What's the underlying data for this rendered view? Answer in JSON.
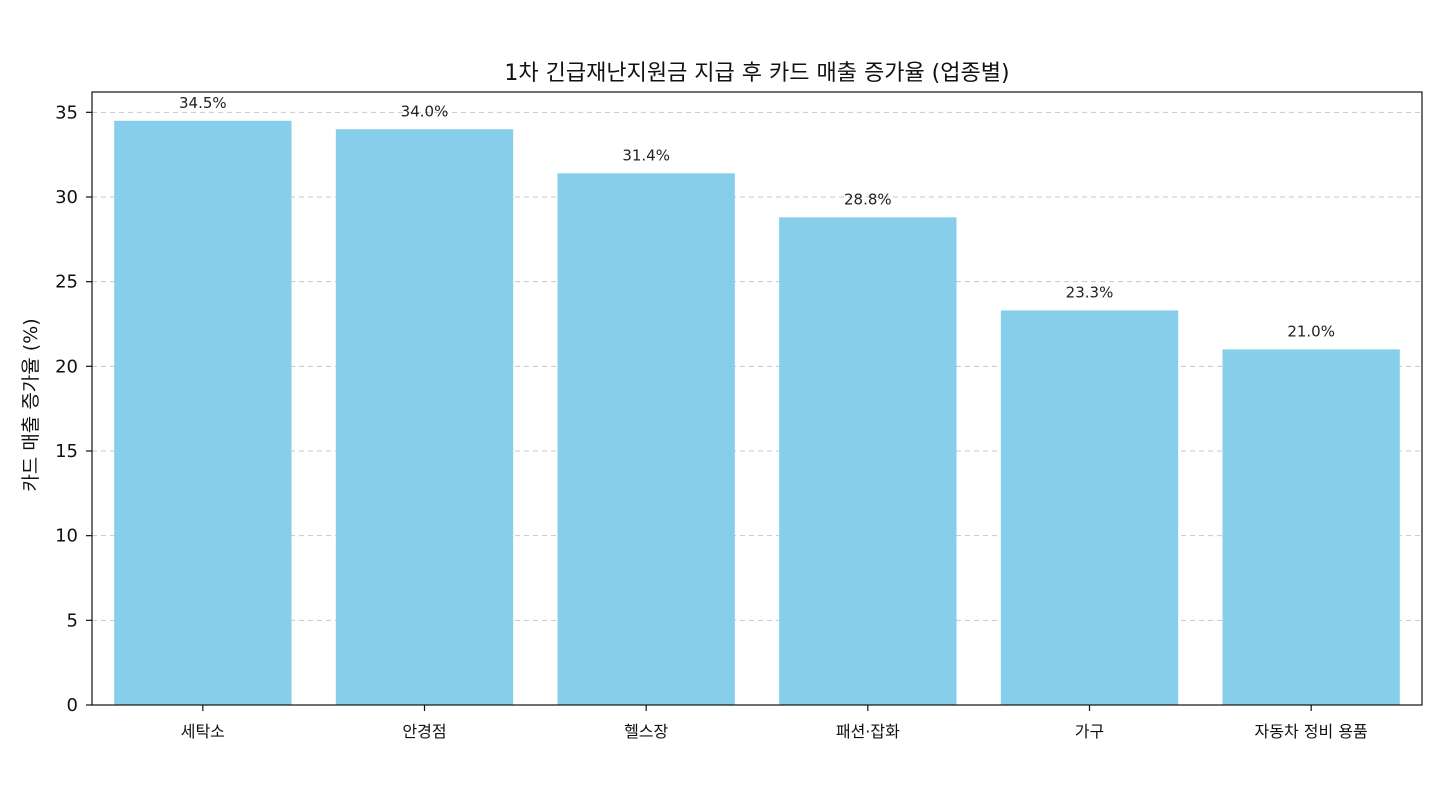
{
  "chart_data": {
    "type": "bar",
    "title": "1차 긴급재난지원금 지급 후 카드 매출 증가율 (업종별)",
    "xlabel": "",
    "ylabel": "카드 매출 증가율 (%)",
    "categories": [
      "세탁소",
      "안경점",
      "헬스장",
      "패션·잡화",
      "가구",
      "자동차 정비 용품"
    ],
    "values": [
      34.5,
      34.0,
      31.4,
      28.8,
      23.3,
      21.0
    ],
    "data_labels": [
      "34.5%",
      "34.0%",
      "31.4%",
      "28.8%",
      "23.3%",
      "21.0%"
    ],
    "ylim": [
      0,
      36.2
    ],
    "yticks": [
      0,
      5,
      10,
      15,
      20,
      25,
      30,
      35
    ],
    "grid": "y-dashed",
    "bar_color": "#87CEEB",
    "legend": "none"
  }
}
